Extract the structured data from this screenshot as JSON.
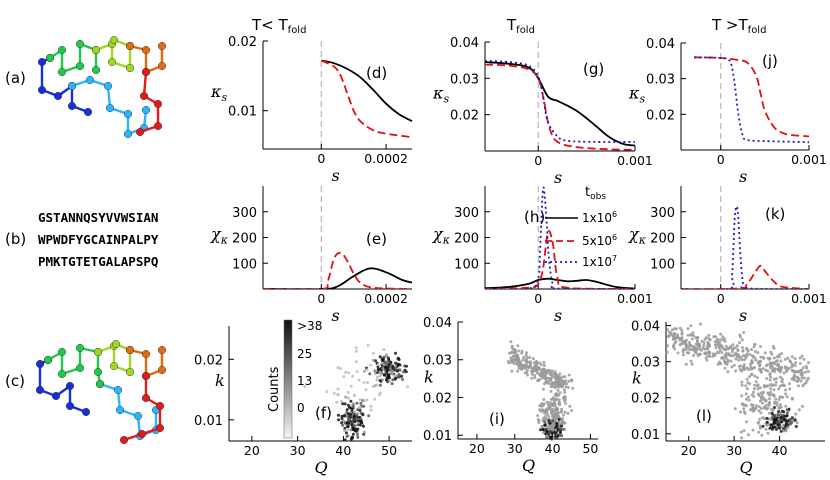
{
  "column_headers": [
    "T< T",
    "T",
    "T >T"
  ],
  "column_subscripts": [
    "fold",
    "fold",
    "fold"
  ],
  "row_labels": [
    "(a)",
    "(b)",
    "(c)"
  ],
  "sequence_lines": [
    "GSTANNQSYVVWSIAN",
    "WPWDFYGCAINPALPY",
    "PMKTGTETGALAPSPQ"
  ],
  "colors": {
    "black": "#000000",
    "red": "#e01010",
    "blue": "#1a1ad0",
    "dash": "#bbbbbb"
  },
  "legend": {
    "title": "t",
    "title_sub": "obs",
    "entries": [
      {
        "label": "1x10",
        "exp": "6",
        "color": "#000000",
        "style": "solid"
      },
      {
        "label": "5x10",
        "exp": "6",
        "color": "#e01010",
        "style": "dashed"
      },
      {
        "label": "1x10",
        "exp": "7",
        "color": "#1a1ad0",
        "style": "dotted"
      }
    ]
  },
  "colorbar": {
    "title": "Counts",
    "ticks": [
      ">38",
      "25",
      "13",
      "0"
    ]
  },
  "chart_data": [
    {
      "panel": "(d)",
      "type": "line",
      "xlabel": "s",
      "ylabel": "κs",
      "xlim": [
        -0.00018,
        0.00028
      ],
      "ylim": [
        0.0045,
        0.02
      ],
      "xticks": [
        0,
        0.0002
      ],
      "xtick_labels": [
        "0",
        "0.0002"
      ],
      "yticks": [
        0.01,
        0.02
      ],
      "ytick_labels": [
        "0.01",
        "0.02"
      ],
      "series": [
        {
          "name": "black",
          "x": [
            0,
            4e-05,
            8e-05,
            0.00012,
            0.00016,
            0.0002,
            0.00024,
            0.00028
          ],
          "y": [
            0.0172,
            0.0168,
            0.016,
            0.0148,
            0.013,
            0.011,
            0.0095,
            0.0085
          ]
        },
        {
          "name": "red",
          "x": [
            0,
            4e-05,
            6e-05,
            8e-05,
            0.0001,
            0.00012,
            0.00016,
            0.0002,
            0.00028
          ],
          "y": [
            0.0172,
            0.0163,
            0.015,
            0.0125,
            0.01,
            0.0085,
            0.0072,
            0.0067,
            0.0062
          ]
        }
      ]
    },
    {
      "panel": "(g)",
      "type": "line",
      "xlabel": "s",
      "ylabel": "κs",
      "xlim": [
        -0.00055,
        0.001
      ],
      "ylim": [
        0.01,
        0.04
      ],
      "xticks": [
        0,
        0.001
      ],
      "xtick_labels": [
        "0",
        "0.001"
      ],
      "yticks": [
        0.02,
        0.03,
        0.04
      ],
      "ytick_labels": [
        "0.02",
        "0.03",
        "0.04"
      ],
      "series": [
        {
          "name": "black",
          "x": [
            -0.00055,
            -0.0003,
            -0.0001,
            0,
            0.0001,
            0.0002,
            0.0003,
            0.0004,
            0.0005,
            0.0006,
            0.0007,
            0.0008,
            0.0009,
            0.001
          ],
          "y": [
            0.0345,
            0.034,
            0.033,
            0.03,
            0.025,
            0.0238,
            0.0225,
            0.021,
            0.019,
            0.0168,
            0.0145,
            0.0128,
            0.0118,
            0.0115
          ]
        },
        {
          "name": "red",
          "x": [
            -0.00055,
            -0.0003,
            -0.0001,
            0,
            5e-05,
            0.0001,
            0.00015,
            0.0002,
            0.0003,
            0.0005,
            0.0008,
            0.001
          ],
          "y": [
            0.0338,
            0.0335,
            0.0325,
            0.03,
            0.025,
            0.018,
            0.014,
            0.0125,
            0.0115,
            0.0108,
            0.0104,
            0.0103
          ]
        },
        {
          "name": "blue",
          "x": [
            -0.00055,
            -0.0003,
            -0.0001,
            0,
            5e-05,
            0.0001,
            0.0002,
            0.0003,
            0.0006,
            0.001
          ],
          "y": [
            0.0348,
            0.0345,
            0.0335,
            0.0305,
            0.025,
            0.018,
            0.014,
            0.0128,
            0.0125,
            0.0125
          ]
        }
      ]
    },
    {
      "panel": "(j)",
      "type": "line",
      "xlabel": "s",
      "ylabel": "κs",
      "xlim": [
        -0.00045,
        0.001
      ],
      "ylim": [
        0.01,
        0.04
      ],
      "xticks": [
        0,
        0.001
      ],
      "xtick_labels": [
        "0",
        "0.001"
      ],
      "yticks": [
        0.02,
        0.03,
        0.04
      ],
      "ytick_labels": [
        "0.02",
        "0.03",
        "0.04"
      ],
      "series": [
        {
          "name": "red",
          "x": [
            -0.0003,
            0,
            0.0002,
            0.0003,
            0.0004,
            0.00045,
            0.0005,
            0.0006,
            0.0007,
            0.0008,
            0.001
          ],
          "y": [
            0.036,
            0.0358,
            0.0352,
            0.0345,
            0.031,
            0.026,
            0.021,
            0.0165,
            0.0148,
            0.0142,
            0.0138
          ]
        },
        {
          "name": "blue",
          "x": [
            -0.0003,
            0,
            0.0001,
            0.00015,
            0.0002,
            0.00025,
            0.0003,
            0.0005,
            0.001
          ],
          "y": [
            0.036,
            0.0358,
            0.035,
            0.03,
            0.02,
            0.014,
            0.0128,
            0.0125,
            0.0122
          ]
        }
      ]
    },
    {
      "panel": "(e)",
      "type": "line",
      "xlabel": "s",
      "ylabel": "χκ",
      "xlim": [
        -0.00018,
        0.00028
      ],
      "ylim": [
        0,
        400
      ],
      "xticks": [
        0,
        0.0002
      ],
      "xtick_labels": [
        "0",
        "0.0002"
      ],
      "yticks": [
        100,
        200,
        300
      ],
      "ytick_labels": [
        "100",
        "200",
        "300"
      ],
      "series": [
        {
          "name": "black",
          "x": [
            -0.00018,
            0,
            5e-05,
            0.0001,
            0.00015,
            0.0002,
            0.00025,
            0.00028
          ],
          "y": [
            0,
            0,
            10,
            50,
            80,
            65,
            35,
            25
          ]
        },
        {
          "name": "red",
          "x": [
            -0.00018,
            0,
            2e-05,
            4e-05,
            6e-05,
            8e-05,
            0.0001,
            0.00012,
            0.00016,
            0.00028
          ],
          "y": [
            0,
            0,
            30,
            120,
            140,
            110,
            60,
            25,
            5,
            0
          ]
        }
      ]
    },
    {
      "panel": "(h)",
      "type": "line",
      "xlabel": "s",
      "ylabel": "χκ",
      "xlim": [
        -0.00055,
        0.001
      ],
      "ylim": [
        0,
        400
      ],
      "xticks": [
        0,
        0.001
      ],
      "xtick_labels": [
        "0",
        "0.001"
      ],
      "yticks": [
        100,
        200,
        300
      ],
      "ytick_labels": [
        "100",
        "200",
        "300"
      ],
      "series": [
        {
          "name": "black",
          "x": [
            -0.00055,
            -0.0003,
            -0.0001,
            0,
            0.0001,
            0.0002,
            0.0003,
            0.0004,
            0.0005,
            0.0006,
            0.0008,
            0.001
          ],
          "y": [
            3,
            8,
            20,
            35,
            40,
            35,
            30,
            32,
            35,
            28,
            8,
            2
          ]
        },
        {
          "name": "red",
          "x": [
            -0.00055,
            -0.0001,
            0,
            5e-05,
            0.0001,
            0.00015,
            0.0002,
            0.0003,
            0.001
          ],
          "y": [
            0,
            5,
            20,
            80,
            220,
            180,
            40,
            5,
            0
          ]
        },
        {
          "name": "blue",
          "x": [
            -0.00055,
            -0.0001,
            0,
            2e-05,
            5e-05,
            8e-05,
            0.00011,
            0.00015,
            0.0002,
            0.001
          ],
          "y": [
            0,
            2,
            40,
            160,
            390,
            300,
            120,
            20,
            2,
            0
          ]
        }
      ]
    },
    {
      "panel": "(k)",
      "type": "line",
      "xlabel": "s",
      "ylabel": "χκ",
      "xlim": [
        -0.00045,
        0.001
      ],
      "ylim": [
        0,
        400
      ],
      "xticks": [
        0,
        0.001
      ],
      "xtick_labels": [
        "0",
        "0.001"
      ],
      "yticks": [
        100,
        200,
        300
      ],
      "ytick_labels": [
        "100",
        "200",
        "300"
      ],
      "series": [
        {
          "name": "red",
          "x": [
            -0.00045,
            0.0002,
            0.0003,
            0.0004,
            0.00045,
            0.0005,
            0.0006,
            0.0007,
            0.001
          ],
          "y": [
            0,
            2,
            20,
            70,
            90,
            70,
            30,
            8,
            0
          ]
        },
        {
          "name": "blue",
          "x": [
            -0.00045,
            0.0001,
            0.00013,
            0.00016,
            0.00019,
            0.00022,
            0.00025,
            0.0003,
            0.001
          ],
          "y": [
            0,
            2,
            60,
            280,
            310,
            150,
            30,
            3,
            0
          ]
        }
      ]
    },
    {
      "panel": "(f)",
      "type": "scatter",
      "xlabel": "Q",
      "ylabel": "k",
      "xlim": [
        15,
        55
      ],
      "ylim": [
        0.0065,
        0.0255
      ],
      "xticks": [
        20,
        30,
        40,
        50
      ],
      "xtick_labels": [
        "20",
        "30",
        "40",
        "50"
      ],
      "yticks": [
        0.01,
        0.02
      ],
      "ytick_labels": [
        "0.01",
        "0.02"
      ],
      "clusters": [
        {
          "Q": 50,
          "k": 0.0185,
          "sdQ": 1.6,
          "sdk": 0.001,
          "n": 160,
          "density": "high"
        },
        {
          "Q": 42,
          "k": 0.01,
          "sdQ": 1.3,
          "sdk": 0.0016,
          "n": 130,
          "density": "high"
        },
        {
          "Q": 45,
          "k": 0.015,
          "sdQ": 4,
          "sdk": 0.003,
          "n": 60,
          "density": "low"
        }
      ]
    },
    {
      "panel": "(i)",
      "type": "scatter",
      "xlabel": "Q",
      "ylabel": "k",
      "xlim": [
        15,
        52
      ],
      "ylim": [
        0.009,
        0.04
      ],
      "xticks": [
        20,
        30,
        40,
        50
      ],
      "xtick_labels": [
        "20",
        "30",
        "40",
        "50"
      ],
      "yticks": [
        0.01,
        0.02,
        0.03,
        0.04
      ],
      "ytick_labels": [
        "0.01",
        "0.02",
        "0.03",
        "0.04"
      ],
      "clusters": [
        {
          "band": true,
          "Q0": 29,
          "k0": 0.031,
          "Q1": 44,
          "k1": 0.023,
          "sdk": 0.0015,
          "n": 260,
          "density": "mid"
        },
        {
          "Q": 40,
          "k": 0.015,
          "sdQ": 2,
          "sdk": 0.003,
          "n": 200,
          "density": "mid"
        },
        {
          "Q": 40,
          "k": 0.011,
          "sdQ": 1.2,
          "sdk": 0.0012,
          "n": 80,
          "density": "high"
        }
      ]
    },
    {
      "panel": "(l)",
      "type": "scatter",
      "xlabel": "Q",
      "ylabel": "k",
      "xlim": [
        15,
        50
      ],
      "ylim": [
        0.008,
        0.041
      ],
      "xticks": [
        20,
        30,
        40
      ],
      "xtick_labels": [
        "20",
        "30",
        "40"
      ],
      "yticks": [
        0.01,
        0.02,
        0.03,
        0.04
      ],
      "ytick_labels": [
        "0.01",
        "0.02",
        "0.03",
        "0.04"
      ],
      "clusters": [
        {
          "band": true,
          "Q0": 15,
          "k0": 0.037,
          "Q1": 46,
          "k1": 0.026,
          "sdk": 0.0022,
          "n": 420,
          "density": "mid"
        },
        {
          "Q": 37,
          "k": 0.018,
          "sdQ": 3,
          "sdk": 0.004,
          "n": 160,
          "density": "mid"
        },
        {
          "Q": 40,
          "k": 0.0135,
          "sdQ": 1.4,
          "sdk": 0.0015,
          "n": 120,
          "density": "high"
        }
      ]
    }
  ]
}
